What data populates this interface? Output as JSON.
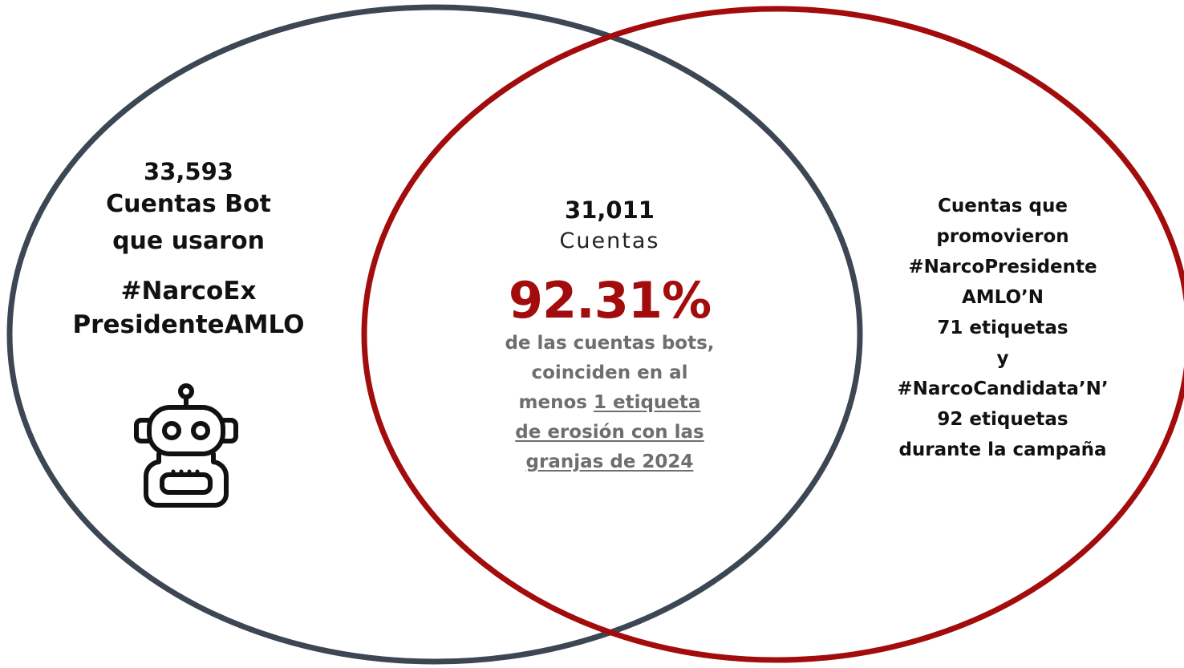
{
  "colors": {
    "left_circle": "#3d4754",
    "right_circle": "#a30c0c",
    "percentage": "#a30c0c",
    "description": "#6e6e6e",
    "text": "#111111"
  },
  "left": {
    "count": "33,593",
    "line1": "Cuentas Bot",
    "line2": "que usaron",
    "hashtag_line1": "#NarcoEx",
    "hashtag_line2": "PresidenteAMLO",
    "icon": "robot-icon"
  },
  "center": {
    "count": "31,011",
    "label": "Cuentas",
    "percentage": "92.31%",
    "desc_line1": "de las cuentas bots,",
    "desc_line2": "coinciden en al",
    "desc_line3_prefix": "menos ",
    "desc_line3_link": "1 etiqueta",
    "desc_line4": "de erosión con las",
    "desc_line5": "granjas de 2024"
  },
  "right": {
    "lines": [
      "Cuentas que",
      "promovieron",
      "#NarcoPresidente",
      "AMLO’N",
      "71 etiquetas",
      "y",
      "#NarcoCandidata’N’",
      "92 etiquetas",
      "durante la campaña"
    ]
  }
}
